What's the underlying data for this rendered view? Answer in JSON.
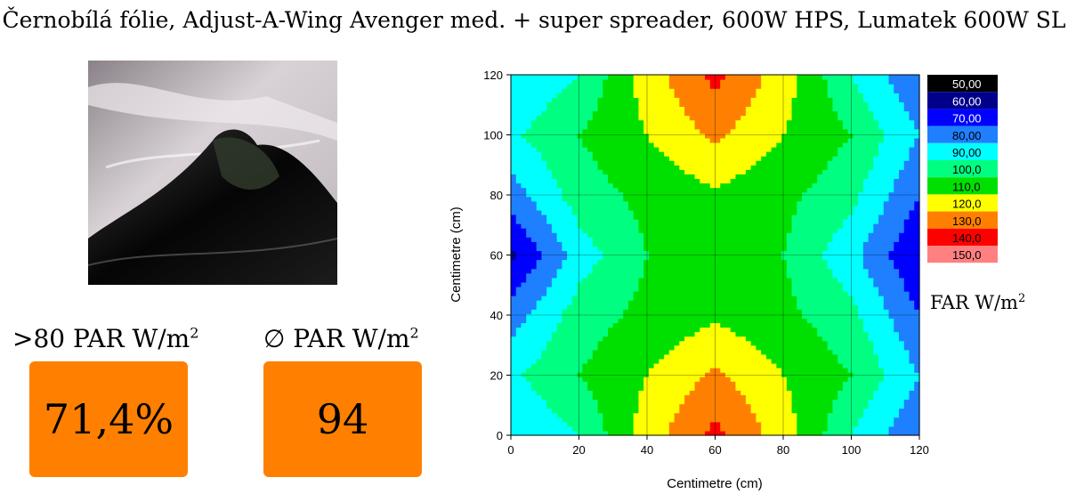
{
  "title": "Černobílá fólie, Adjust-A-Wing Avenger med. + super spreader, 600W HPS, Lumatek 600W SL",
  "stats": {
    "coverage": {
      "label_prefix": ">80 PAR W/m",
      "label_sup": "2",
      "value": "71,4%"
    },
    "average": {
      "label_prefix": "∅ PAR W/m",
      "label_sup": "2",
      "value": "94"
    }
  },
  "colors": {
    "stat_box": "#ff8000"
  },
  "chart_data": {
    "type": "heatmap",
    "xlabel": "Centimetre (cm)",
    "ylabel": "Centimetre (cm)",
    "xlim": [
      0,
      120
    ],
    "ylim": [
      0,
      120
    ],
    "xticks": [
      "0",
      "20",
      "40",
      "60",
      "80",
      "100",
      "120"
    ],
    "yticks": [
      "0",
      "20",
      "40",
      "60",
      "80",
      "100",
      "120"
    ],
    "grid": true,
    "legend_position": "right",
    "legend_unit_prefix": "FAR W/m",
    "legend_unit_sup": "2",
    "levels": [
      {
        "label": "50,00",
        "color": "#000000"
      },
      {
        "label": "60,00",
        "color": "#00008b"
      },
      {
        "label": "70,00",
        "color": "#0000ff"
      },
      {
        "label": "80,00",
        "color": "#1e7fff"
      },
      {
        "label": "90,00",
        "color": "#00ffff"
      },
      {
        "label": "100,0",
        "color": "#00ff80"
      },
      {
        "label": "110,0",
        "color": "#00e000"
      },
      {
        "label": "120,0",
        "color": "#ffff00"
      },
      {
        "label": "130,0",
        "color": "#ff8000"
      },
      {
        "label": "140,0",
        "color": "#ff0000"
      },
      {
        "label": "150,0",
        "color": "#ff8080"
      }
    ],
    "x": [
      0,
      20,
      40,
      60,
      80,
      100,
      120
    ],
    "y": [
      0,
      20,
      40,
      60,
      80,
      100,
      120
    ],
    "z": [
      [
        80,
        90,
        115,
        133,
        115,
        90,
        70
      ],
      [
        88,
        100,
        110,
        122,
        110,
        100,
        80
      ],
      [
        75,
        95,
        103,
        108,
        103,
        93,
        70
      ],
      [
        58,
        85,
        100,
        100,
        100,
        83,
        60
      ],
      [
        75,
        95,
        103,
        108,
        103,
        93,
        70
      ],
      [
        88,
        100,
        110,
        122,
        110,
        100,
        80
      ],
      [
        80,
        90,
        115,
        133,
        115,
        90,
        70
      ]
    ]
  }
}
